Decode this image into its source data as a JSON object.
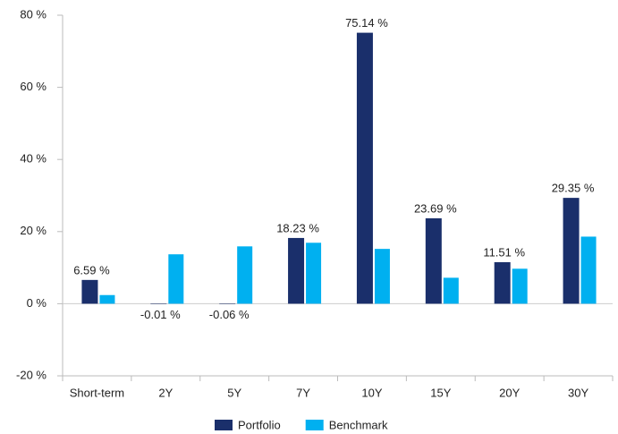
{
  "chart_data": {
    "type": "bar",
    "categories": [
      "Short-term",
      "2Y",
      "5Y",
      "7Y",
      "10Y",
      "15Y",
      "20Y",
      "30Y"
    ],
    "series": [
      {
        "name": "Portfolio",
        "color": "#1a2f6b",
        "values": [
          6.59,
          -0.01,
          -0.06,
          18.23,
          75.14,
          23.69,
          11.51,
          29.35
        ],
        "value_labels": [
          "6.59 %",
          "-0.01 %",
          "-0.06 %",
          "18.23 %",
          "75.14 %",
          "23.69 %",
          "11.51 %",
          "29.35 %"
        ]
      },
      {
        "name": "Benchmark",
        "color": "#00b0f0",
        "values": [
          2.4,
          13.7,
          15.9,
          16.9,
          15.2,
          7.2,
          9.7,
          18.6
        ]
      }
    ],
    "ylim": [
      -20,
      80
    ],
    "yticks": [
      {
        "value": -20,
        "label": "-20 %"
      },
      {
        "value": 0,
        "label": "0 %"
      },
      {
        "value": 20,
        "label": "20 %"
      },
      {
        "value": 40,
        "label": "40 %"
      },
      {
        "value": 60,
        "label": "60 %"
      },
      {
        "value": 80,
        "label": "80 %"
      }
    ],
    "legend": "bottom"
  }
}
